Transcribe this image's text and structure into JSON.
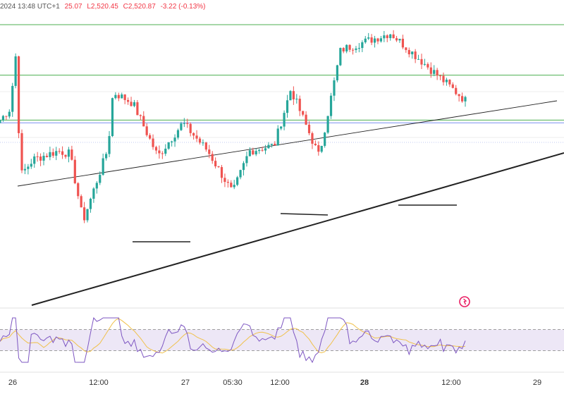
{
  "header": {
    "timestamp": "2024 13:48 UTC+1",
    "open_partial": "25.07",
    "low": "L2,520.45",
    "close": "C2,520.87",
    "change": "-3.22 (-0.13%)"
  },
  "colors": {
    "up": "#26a69a",
    "down": "#ef5350",
    "level_green": "#4caf50",
    "level_blue": "#7b8ff0",
    "trend": "#222222",
    "rsi_line": "#7e57c2",
    "rsi_ma": "#f0c14b",
    "rsi_band": "#ede7f6",
    "alert": "#e91e63"
  },
  "x_axis": {
    "labels": [
      {
        "text": "26",
        "bold": false
      },
      {
        "text": "12:00",
        "bold": false
      },
      {
        "text": "27",
        "bold": false
      },
      {
        "text": "05:30",
        "bold": false
      },
      {
        "text": "12:00",
        "bold": false
      },
      {
        "text": "28",
        "bold": true
      },
      {
        "text": "12:00",
        "bold": false
      },
      {
        "text": "29",
        "bold": false
      }
    ]
  },
  "chart_data": {
    "type": "candlestick",
    "price_scale": {
      "min": 0,
      "max": 100,
      "note": "relative scale, price axis not shown"
    },
    "candles_count": 150,
    "key_points": [
      {
        "t": 0,
        "price": 66
      },
      {
        "t": 6,
        "price": 70
      },
      {
        "t": 10,
        "price": 92
      },
      {
        "t": 12,
        "price": 46
      },
      {
        "t": 20,
        "price": 52
      },
      {
        "t": 35,
        "price": 55
      },
      {
        "t": 42,
        "price": 54
      },
      {
        "t": 50,
        "price": 30
      },
      {
        "t": 65,
        "price": 56
      },
      {
        "t": 68,
        "price": 76
      },
      {
        "t": 80,
        "price": 72
      },
      {
        "t": 95,
        "price": 53
      },
      {
        "t": 110,
        "price": 65
      },
      {
        "t": 125,
        "price": 55
      },
      {
        "t": 140,
        "price": 40
      },
      {
        "t": 150,
        "price": 55
      },
      {
        "t": 165,
        "price": 57
      },
      {
        "t": 175,
        "price": 77
      },
      {
        "t": 192,
        "price": 53
      },
      {
        "t": 205,
        "price": 91
      },
      {
        "t": 235,
        "price": 97
      },
      {
        "t": 280,
        "price": 73
      }
    ],
    "horizontal_levels": [
      {
        "price": 100,
        "color": "green"
      },
      {
        "price": 82,
        "color": "green"
      },
      {
        "price": 66,
        "color": "green"
      },
      {
        "price": 65,
        "color": "blue"
      }
    ],
    "rsi": {
      "range": [
        0,
        100
      ],
      "bands": [
        30,
        70
      ]
    }
  }
}
